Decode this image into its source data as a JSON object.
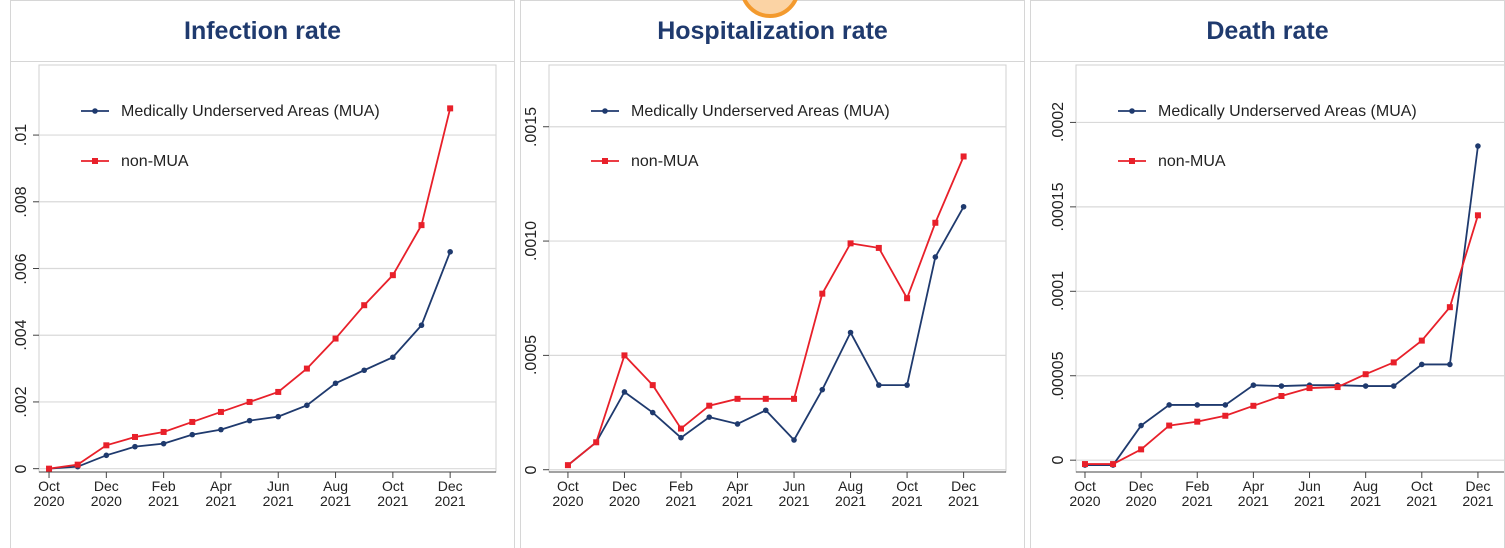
{
  "chart_data": [
    {
      "type": "line",
      "title": "Infection rate",
      "x": [
        0,
        1,
        2,
        3,
        4,
        5,
        6,
        7,
        8,
        9,
        10,
        11,
        12,
        13,
        14
      ],
      "xlim": [
        -0.35,
        15.6
      ],
      "xticks": [
        {
          "value": 0,
          "label": "Oct 2020"
        },
        {
          "value": 2,
          "label": "Dec 2020"
        },
        {
          "value": 4,
          "label": "Feb 2021"
        },
        {
          "value": 6,
          "label": "Apr 2021"
        },
        {
          "value": 8,
          "label": "Jun 2021"
        },
        {
          "value": 10,
          "label": "Aug 2021"
        },
        {
          "value": 12,
          "label": "Oct 2021"
        },
        {
          "value": 14,
          "label": "Dec 2021"
        }
      ],
      "ylim": [
        -0.0001,
        0.0121
      ],
      "yticks": [
        0,
        {
          "value": 0.002,
          "label": ".002"
        },
        {
          "value": 0.004,
          "label": ".004"
        },
        {
          "value": 0.006,
          "label": ".006"
        },
        {
          "value": 0.008,
          "label": ".008"
        },
        {
          "value": 0.01,
          "label": ".01"
        }
      ],
      "grid": true,
      "legend": "top-left",
      "series": [
        {
          "name": "Medically Underserved Areas (MUA)",
          "color": "#1f3a6e",
          "marker": "circle",
          "values": [
            0,
            6e-05,
            0.0004,
            0.00066,
            0.00075,
            0.00102,
            0.00117,
            0.00144,
            0.00156,
            0.0019,
            0.00256,
            0.00295,
            0.00334,
            0.0043,
            0.0065
          ]
        },
        {
          "name": "non-MUA",
          "color": "#e8202a",
          "marker": "square",
          "values": [
            0,
            0.00012,
            0.0007,
            0.00095,
            0.0011,
            0.0014,
            0.0017,
            0.002,
            0.0023,
            0.003,
            0.0039,
            0.0049,
            0.0058,
            0.0073,
            0.0108
          ]
        }
      ]
    },
    {
      "type": "line",
      "title": "Hospitalization rate",
      "x": [
        0,
        1,
        2,
        3,
        4,
        5,
        6,
        7,
        8,
        9,
        10,
        11,
        12,
        13,
        14
      ],
      "xlim": [
        -0.67,
        15.5
      ],
      "xticks": [
        {
          "value": 0,
          "label": "Oct 2020"
        },
        {
          "value": 2,
          "label": "Dec 2020"
        },
        {
          "value": 4,
          "label": "Feb 2021"
        },
        {
          "value": 6,
          "label": "Apr 2021"
        },
        {
          "value": 8,
          "label": "Jun 2021"
        },
        {
          "value": 10,
          "label": "Aug 2021"
        },
        {
          "value": 12,
          "label": "Oct 2021"
        },
        {
          "value": 14,
          "label": "Dec 2021"
        }
      ],
      "ylim": [
        -1e-05,
        0.00177
      ],
      "yticks": [
        0,
        {
          "value": 0.0005,
          "label": ".0005"
        },
        {
          "value": 0.001,
          "label": ".0010"
        },
        {
          "value": 0.0015,
          "label": ".0015"
        }
      ],
      "grid": true,
      "legend": "top-left",
      "series": [
        {
          "name": "Medically Underserved Areas (MUA)",
          "color": "#1f3a6e",
          "marker": "circle",
          "values": [
            2e-05,
            0.00012,
            0.00034,
            0.00025,
            0.00014,
            0.00023,
            0.0002,
            0.00026,
            0.00013,
            0.00035,
            0.0006,
            0.00037,
            0.00037,
            0.00093,
            0.00115
          ]
        },
        {
          "name": "non-MUA",
          "color": "#e8202a",
          "marker": "square",
          "values": [
            2e-05,
            0.00012,
            0.0005,
            0.00037,
            0.00018,
            0.00028,
            0.00031,
            0.00031,
            0.00031,
            0.00077,
            0.00099,
            0.00097,
            0.00075,
            0.00108,
            0.00137
          ]
        }
      ]
    },
    {
      "type": "line",
      "title": "Death rate",
      "x": [
        0,
        1,
        2,
        3,
        4,
        5,
        6,
        7,
        8,
        9,
        10,
        11,
        12,
        13,
        14
      ],
      "xlim": [
        -0.32,
        15
      ],
      "xticks": [
        {
          "value": 0,
          "label": "Oct 2020"
        },
        {
          "value": 2,
          "label": "Dec 2020"
        },
        {
          "value": 4,
          "label": "Feb 2021"
        },
        {
          "value": 6,
          "label": "Apr 2021"
        },
        {
          "value": 8,
          "label": "Jun 2021"
        },
        {
          "value": 10,
          "label": "Aug 2021"
        },
        {
          "value": 12,
          "label": "Oct 2021"
        },
        {
          "value": 14,
          "label": "Dec 2021"
        }
      ],
      "ylim": [
        -7e-06,
        0.000234
      ],
      "yticks": [
        0,
        {
          "value": 5e-05,
          "label": ".00005"
        },
        {
          "value": 0.0001,
          "label": ".0001"
        },
        {
          "value": 0.00015,
          "label": ".00015"
        },
        {
          "value": 0.0002,
          "label": ".0002"
        }
      ],
      "grid": true,
      "legend": "top-left",
      "series": [
        {
          "name": "Medically Underserved Areas (MUA)",
          "color": "#1f3a6e",
          "marker": "circle",
          "values": [
            -2.9e-06,
            -2.9e-06,
            2.05e-05,
            3.27e-05,
            3.27e-05,
            3.27e-05,
            4.44e-05,
            4.39e-05,
            4.44e-05,
            4.44e-05,
            4.39e-05,
            4.39e-05,
            5.67e-05,
            5.67e-05,
            0.000186
          ]
        },
        {
          "name": "non-MUA",
          "color": "#e8202a",
          "marker": "square",
          "values": [
            -2.3e-06,
            -2.3e-06,
            6.4e-06,
            2.05e-05,
            2.28e-05,
            2.63e-05,
            3.22e-05,
            3.8e-05,
            4.27e-05,
            4.33e-05,
            5.09e-05,
            5.79e-05,
            7.08e-05,
            9.06e-05,
            0.000145
          ]
        }
      ]
    }
  ]
}
